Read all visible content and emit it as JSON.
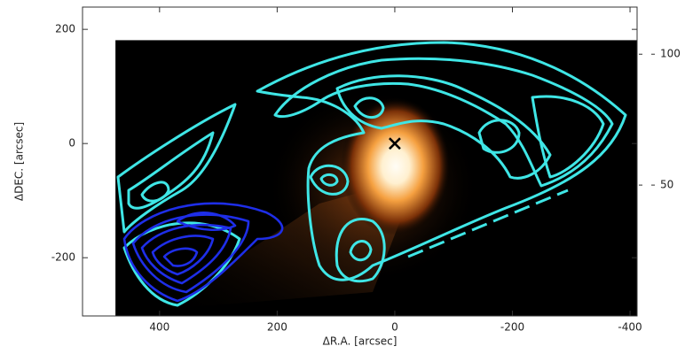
{
  "chart_data": {
    "type": "image",
    "x_label": "ΔR.A. [arcsec]",
    "y_label": "ΔDEC. [arcsec]",
    "xlim": [
      531,
      -412
    ],
    "ylim": [
      -302,
      239
    ],
    "xticks": [
      400,
      200,
      0,
      -200,
      -400
    ],
    "yticks": [
      200,
      0,
      -200
    ],
    "image_extent": [
      475,
      -412,
      181,
      -302
    ],
    "marker": {
      "x": 0,
      "y": 0
    },
    "colorbar": {
      "clim": [
        0,
        118
      ],
      "ticks": [
        100,
        50
      ]
    }
  }
}
